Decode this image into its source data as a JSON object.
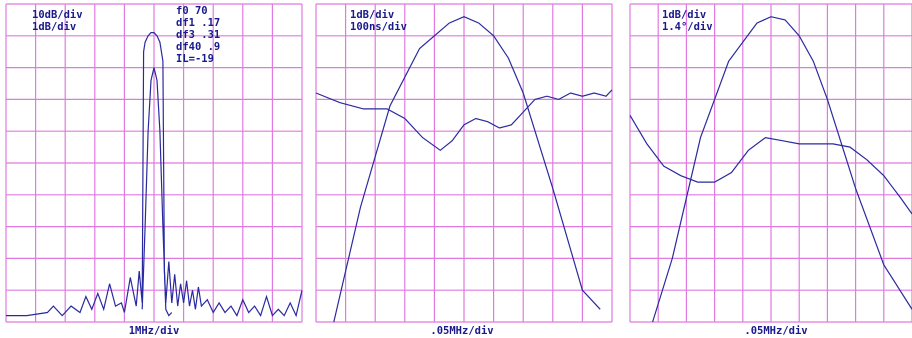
{
  "colors": {
    "grid": "#e07ae0",
    "trace": "#2a2aa0",
    "text": "#1a1a8c",
    "background": "#ffffff"
  },
  "chart_data": [
    {
      "type": "line",
      "annotations": [
        "10dB/div",
        "1dB/div"
      ],
      "readout": [
        "f0 70",
        "df1 .17",
        "df3 .31",
        "df40 .9",
        "IL=-19"
      ],
      "xlabel": "1MHz/div",
      "grid": true,
      "xlim": [
        0,
        10
      ],
      "ylim": [
        0,
        10
      ],
      "series": [
        {
          "x": [
            0,
            0.7,
            1.4,
            1.6,
            1.9,
            2.2,
            2.5,
            2.7,
            2.9,
            3.1,
            3.3,
            3.5,
            3.7,
            3.9,
            4.0,
            4.2,
            4.4,
            4.5,
            4.6,
            4.65,
            4.7,
            4.8,
            4.9,
            5.0,
            5.1,
            5.2,
            5.3,
            5.35,
            5.4,
            5.5,
            5.6,
            5.7,
            5.8,
            5.9,
            6.0,
            6.1,
            6.2,
            6.3,
            6.4,
            6.5,
            6.6,
            6.8,
            7.0,
            7.2,
            7.4,
            7.6,
            7.8,
            8.0,
            8.2,
            8.4,
            8.6,
            8.8,
            9.0,
            9.2,
            9.4,
            9.6,
            9.8,
            10
          ],
          "y": [
            0.2,
            0.2,
            0.3,
            0.5,
            0.2,
            0.5,
            0.3,
            0.8,
            0.4,
            0.9,
            0.4,
            1.2,
            0.5,
            0.6,
            0.3,
            1.4,
            0.5,
            1.6,
            0.6,
            8.5,
            8.8,
            9.0,
            9.1,
            9.1,
            9.0,
            8.8,
            8.2,
            1.6,
            0.6,
            1.9,
            0.6,
            1.5,
            0.5,
            1.2,
            0.6,
            1.3,
            0.5,
            1.0,
            0.4,
            1.1,
            0.5,
            0.7,
            0.3,
            0.6,
            0.3,
            0.5,
            0.2,
            0.7,
            0.3,
            0.5,
            0.2,
            0.8,
            0.2,
            0.4,
            0.2,
            0.6,
            0.2,
            1.0
          ]
        },
        {
          "x": [
            4.6,
            4.7,
            4.8,
            4.9,
            5.0,
            5.1,
            5.2,
            5.3,
            5.4,
            5.5,
            5.6
          ],
          "y": [
            0.4,
            3.0,
            6.0,
            7.6,
            8.0,
            7.6,
            6.0,
            3.0,
            0.4,
            0.2,
            0.3
          ]
        }
      ]
    },
    {
      "type": "line",
      "annotations": [
        "1dB/div",
        "100ns/div"
      ],
      "xlabel": ".05MHz/div",
      "grid": true,
      "xlim": [
        0,
        10
      ],
      "ylim": [
        0,
        10
      ],
      "series": [
        {
          "x": [
            0.6,
            1.5,
            2.5,
            3.5,
            4.5,
            5.0,
            5.5,
            6.0,
            6.5,
            7.0,
            8.0,
            9.0,
            9.6
          ],
          "y": [
            0.0,
            3.6,
            6.8,
            8.6,
            9.4,
            9.6,
            9.4,
            9.0,
            8.3,
            7.2,
            4.2,
            1.0,
            0.4
          ]
        },
        {
          "x": [
            0,
            0.8,
            1.6,
            2.4,
            3.0,
            3.6,
            4.2,
            4.6,
            5.0,
            5.4,
            5.8,
            6.2,
            6.6,
            7.0,
            7.4,
            7.8,
            8.2,
            8.6,
            9.0,
            9.4,
            9.8,
            10
          ],
          "y": [
            7.2,
            6.9,
            6.7,
            6.7,
            6.4,
            5.8,
            5.4,
            5.7,
            6.2,
            6.4,
            6.3,
            6.1,
            6.2,
            6.6,
            7.0,
            7.1,
            7.0,
            7.2,
            7.1,
            7.2,
            7.1,
            7.3
          ]
        }
      ]
    },
    {
      "type": "line",
      "annotations": [
        "1dB/div",
        "1.4°/div"
      ],
      "xlabel": ".05MHz/div",
      "grid": true,
      "xlim": [
        0,
        10
      ],
      "ylim": [
        0,
        10
      ],
      "series": [
        {
          "x": [
            0.8,
            1.5,
            2.5,
            3.5,
            4.5,
            5.0,
            5.5,
            6.0,
            6.5,
            7.0,
            8.0,
            9.0,
            10
          ],
          "y": [
            0.0,
            2.0,
            5.8,
            8.2,
            9.4,
            9.6,
            9.5,
            9.0,
            8.2,
            7.0,
            4.2,
            1.8,
            0.4
          ]
        },
        {
          "x": [
            0,
            0.6,
            1.2,
            1.8,
            2.4,
            3.0,
            3.6,
            4.2,
            4.8,
            5.4,
            6.0,
            6.6,
            7.2,
            7.8,
            8.4,
            9.0,
            9.6,
            10
          ],
          "y": [
            6.5,
            5.6,
            4.9,
            4.6,
            4.4,
            4.4,
            4.7,
            5.4,
            5.8,
            5.7,
            5.6,
            5.6,
            5.6,
            5.5,
            5.1,
            4.6,
            3.9,
            3.4
          ]
        }
      ]
    }
  ]
}
